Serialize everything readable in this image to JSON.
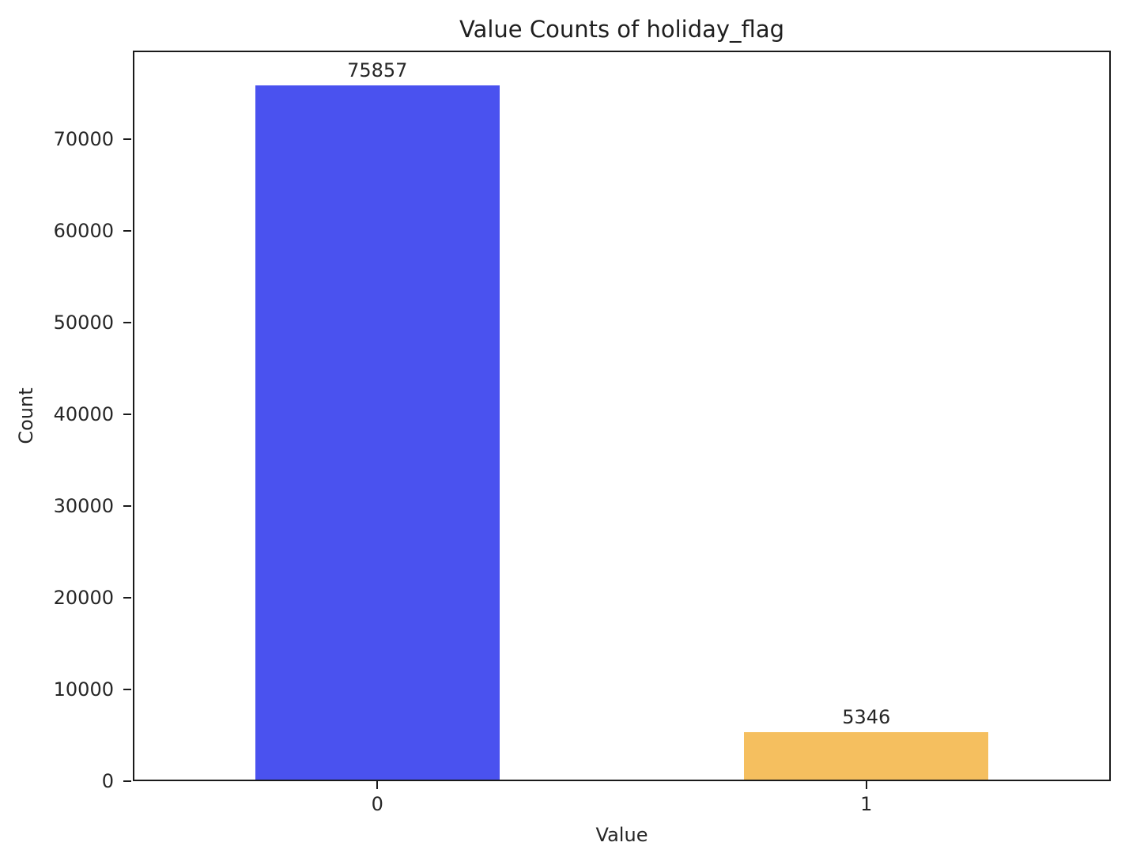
{
  "chart_data": {
    "type": "bar",
    "title": "Value Counts of holiday_flag",
    "xlabel": "Value",
    "ylabel": "Count",
    "categories": [
      "0",
      "1"
    ],
    "values": [
      75857,
      5346
    ],
    "bar_labels": [
      "75857",
      "5346"
    ],
    "bar_colors": [
      "#4a52ef",
      "#f5bf5f"
    ],
    "x_positions": [
      0,
      1
    ],
    "bar_width": 0.5,
    "xlim": [
      -0.5,
      1.5
    ],
    "ylim": [
      0,
      79650
    ],
    "yticks": [
      0,
      10000,
      20000,
      30000,
      40000,
      50000,
      60000,
      70000
    ],
    "ytick_labels": [
      "0",
      "10000",
      "20000",
      "30000",
      "40000",
      "50000",
      "60000",
      "70000"
    ],
    "grid": false,
    "legend": "none",
    "axis_color": "#1a1a1a",
    "background_color": "#ffffff"
  }
}
